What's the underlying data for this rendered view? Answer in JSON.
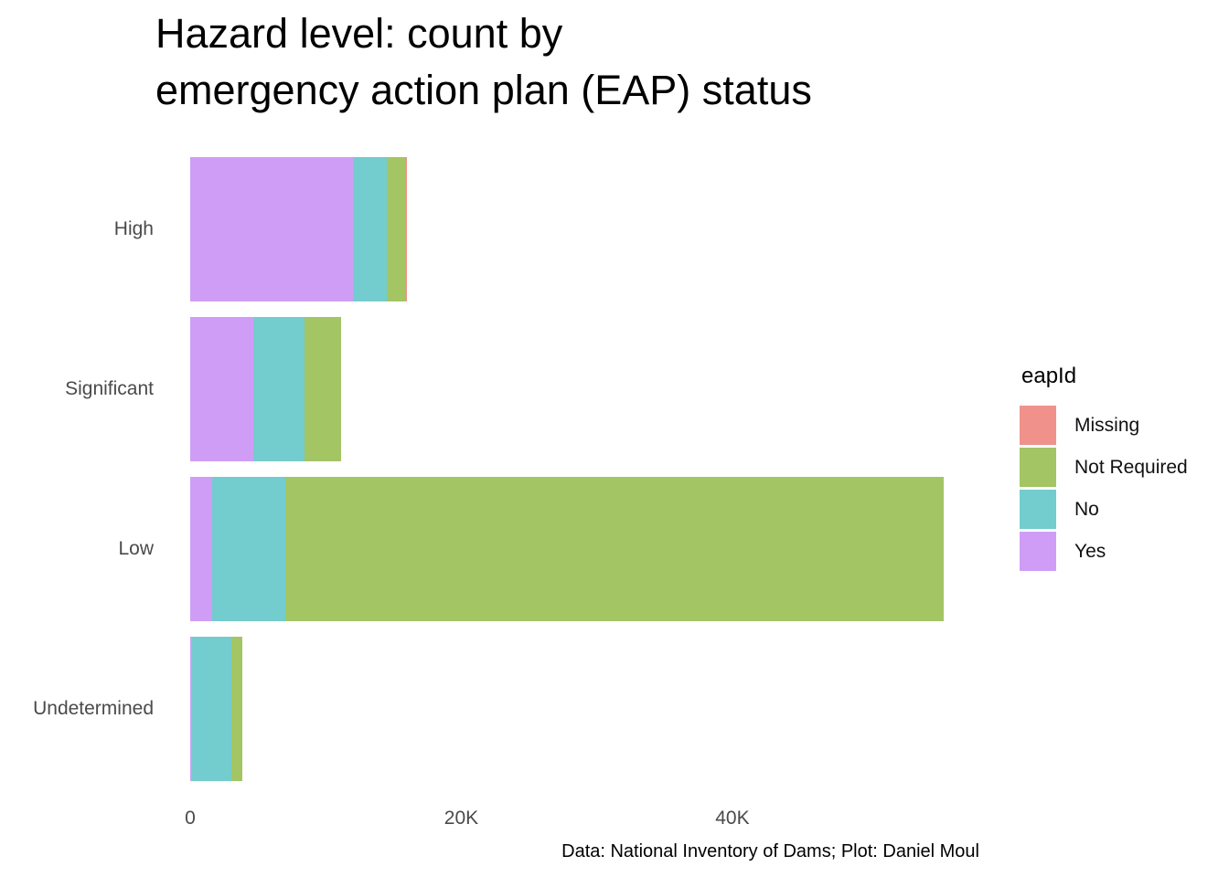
{
  "title": "Hazard level: count by\nemergency action plan (EAP) status",
  "caption": "Data: National Inventory of Dams; Plot: Daniel Moul",
  "legend": {
    "title": "eapId",
    "entries": [
      {
        "label": "Missing",
        "color": "#F0928B"
      },
      {
        "label": "Not Required",
        "color": "#A3C564"
      },
      {
        "label": "No",
        "color": "#73CCCE"
      },
      {
        "label": "Yes",
        "color": "#D09DF6"
      }
    ]
  },
  "chart_data": {
    "type": "bar",
    "orientation": "horizontal",
    "stacked": true,
    "title": "Hazard level: count by emergency action plan (EAP) status",
    "xlabel": "",
    "ylabel": "",
    "categories": [
      "High",
      "Significant",
      "Low",
      "Undetermined"
    ],
    "series": [
      {
        "name": "Yes",
        "color": "#D09DF6",
        "values": [
          12000,
          4650,
          1600,
          150
        ]
      },
      {
        "name": "No",
        "color": "#73CCCE",
        "values": [
          2500,
          3800,
          5400,
          2900
        ]
      },
      {
        "name": "Not Required",
        "color": "#A3C564",
        "values": [
          1350,
          2700,
          48600,
          800
        ]
      },
      {
        "name": "Missing",
        "color": "#F0928B",
        "values": [
          150,
          0,
          0,
          0
        ]
      }
    ],
    "stack_order_left_to_right": [
      "Yes",
      "No",
      "Not Required",
      "Missing"
    ],
    "x_ticks": [
      {
        "label": "0",
        "value": 0
      },
      {
        "label": "20K",
        "value": 20000
      },
      {
        "label": "40K",
        "value": 40000
      }
    ],
    "xlim": [
      0,
      59500
    ],
    "grid": false,
    "legend_title": "eapId",
    "legend_position": "right"
  },
  "colors": {
    "axis_text": "#4a4a4a",
    "title_text": "#000000",
    "background": "#ffffff"
  }
}
